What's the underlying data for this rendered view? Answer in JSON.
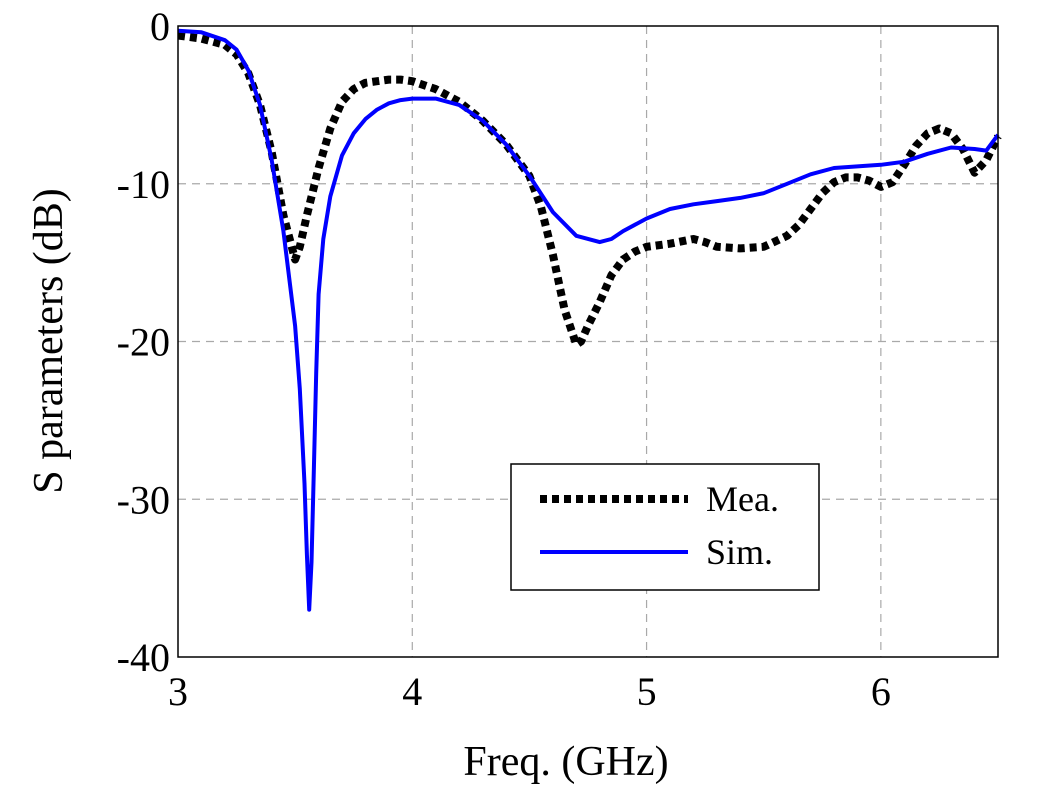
{
  "chart_data": {
    "type": "line",
    "title": "",
    "xlabel": "Freq. (GHz)",
    "ylabel": "S parameters (dB)",
    "xlim": [
      3,
      6.5
    ],
    "ylim": [
      -40,
      0
    ],
    "xticks": [
      3,
      4,
      5,
      6
    ],
    "yticks": [
      0,
      -10,
      -20,
      -30,
      -40
    ],
    "xtick_labels": [
      "3",
      "4",
      "5",
      "6"
    ],
    "ytick_labels": [
      "0",
      "-10",
      "-20",
      "-30",
      "-40"
    ],
    "grid": true,
    "legend_position": "lower-right",
    "series": [
      {
        "name": "Mea.",
        "style": "dotted",
        "color": "#000000",
        "x": [
          3.0,
          3.1,
          3.2,
          3.25,
          3.3,
          3.35,
          3.4,
          3.45,
          3.5,
          3.52,
          3.55,
          3.6,
          3.65,
          3.7,
          3.75,
          3.8,
          3.85,
          3.9,
          3.95,
          4.0,
          4.1,
          4.2,
          4.3,
          4.4,
          4.5,
          4.55,
          4.6,
          4.65,
          4.7,
          4.72,
          4.75,
          4.8,
          4.85,
          4.9,
          4.95,
          5.0,
          5.1,
          5.2,
          5.25,
          5.3,
          5.4,
          5.5,
          5.6,
          5.65,
          5.7,
          5.75,
          5.8,
          5.85,
          5.9,
          5.95,
          6.0,
          6.05,
          6.1,
          6.15,
          6.2,
          6.25,
          6.3,
          6.35,
          6.4,
          6.45,
          6.5
        ],
        "values": [
          -0.6,
          -0.8,
          -1.2,
          -1.8,
          -3.0,
          -5.0,
          -8.0,
          -12.0,
          -14.8,
          -14.0,
          -12.0,
          -9.0,
          -6.5,
          -4.8,
          -4.0,
          -3.6,
          -3.5,
          -3.4,
          -3.4,
          -3.5,
          -4.0,
          -4.8,
          -6.0,
          -7.5,
          -9.5,
          -11.5,
          -14.5,
          -18.0,
          -20.2,
          -20.0,
          -19.0,
          -17.5,
          -15.8,
          -14.8,
          -14.3,
          -14.0,
          -13.8,
          -13.5,
          -13.7,
          -14.0,
          -14.1,
          -14.0,
          -13.3,
          -12.6,
          -11.6,
          -10.6,
          -9.9,
          -9.6,
          -9.6,
          -9.8,
          -10.2,
          -9.9,
          -8.8,
          -7.6,
          -6.8,
          -6.5,
          -6.8,
          -7.8,
          -9.3,
          -8.5,
          -7.0
        ]
      },
      {
        "name": "Sim.",
        "style": "solid",
        "color": "#0000ff",
        "x": [
          3.0,
          3.1,
          3.2,
          3.25,
          3.3,
          3.35,
          3.4,
          3.45,
          3.5,
          3.52,
          3.54,
          3.55,
          3.56,
          3.57,
          3.58,
          3.59,
          3.6,
          3.62,
          3.65,
          3.7,
          3.75,
          3.8,
          3.85,
          3.9,
          3.95,
          4.0,
          4.05,
          4.1,
          4.2,
          4.3,
          4.4,
          4.5,
          4.6,
          4.7,
          4.8,
          4.85,
          4.9,
          5.0,
          5.1,
          5.2,
          5.3,
          5.4,
          5.5,
          5.6,
          5.7,
          5.8,
          5.9,
          6.0,
          6.1,
          6.2,
          6.3,
          6.4,
          6.45,
          6.5
        ],
        "values": [
          -0.3,
          -0.4,
          -0.9,
          -1.5,
          -2.8,
          -5.0,
          -8.5,
          -13.0,
          -19.0,
          -23.0,
          -29.0,
          -33.5,
          -37.0,
          -34.0,
          -28.0,
          -22.0,
          -17.0,
          -13.5,
          -10.8,
          -8.2,
          -6.8,
          -5.9,
          -5.3,
          -4.9,
          -4.7,
          -4.6,
          -4.6,
          -4.6,
          -5.0,
          -6.0,
          -7.5,
          -9.5,
          -11.8,
          -13.3,
          -13.7,
          -13.5,
          -13.0,
          -12.2,
          -11.6,
          -11.3,
          -11.1,
          -10.9,
          -10.6,
          -10.0,
          -9.4,
          -9.0,
          -8.9,
          -8.8,
          -8.6,
          -8.1,
          -7.7,
          -7.8,
          -7.9,
          -6.9
        ]
      }
    ]
  }
}
